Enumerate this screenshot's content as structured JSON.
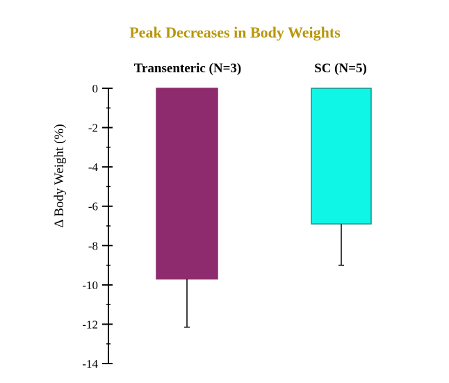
{
  "chart_data": {
    "type": "bar",
    "title": "Peak Decreases in Body Weights",
    "xlabel": "",
    "ylabel": "Δ Body Weight (%)",
    "ylim": [
      -14,
      0
    ],
    "yticks": [
      0,
      -2,
      -4,
      -6,
      -8,
      -10,
      -12,
      -14
    ],
    "grid": false,
    "categories": [
      "Transenteric (N=3)",
      "SC (N=5)"
    ],
    "values": [
      -9.7,
      -6.9
    ],
    "error_minus": [
      2.45,
      2.1
    ],
    "colors": [
      "#8e2a6e",
      "#0ff5e6"
    ],
    "edge_colors": [
      "#8e2a6e",
      "#1a8f87"
    ]
  }
}
